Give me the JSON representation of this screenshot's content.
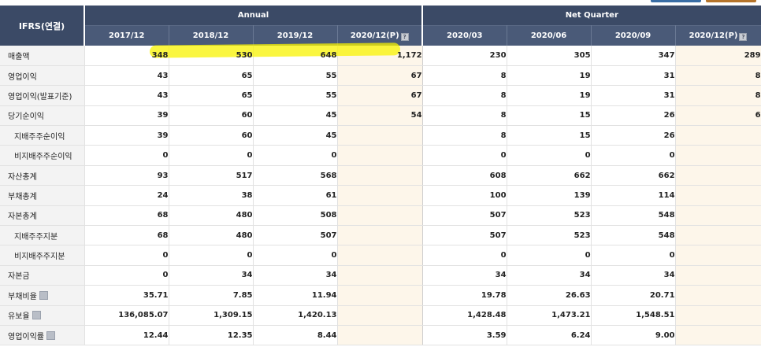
{
  "header": {
    "corner_label": "IFRS(연결)",
    "annual_label": "Annual",
    "quarter_label": "Net Quarter",
    "annual_periods": [
      "2017/12",
      "2018/12",
      "2019/12",
      "2020/12(P)"
    ],
    "quarter_periods": [
      "2020/03",
      "2020/06",
      "2020/09",
      "2020/12(P)"
    ]
  },
  "colors": {
    "header_bg": "#3b4a66",
    "subheader_bg": "#4a5a78",
    "estimate_bg": "#fdf6ea",
    "highlight": "#f8f300"
  },
  "rows": [
    {
      "label": "매출액",
      "values": [
        "348",
        "530",
        "648",
        "1,172",
        "230",
        "305",
        "347",
        "289"
      ]
    },
    {
      "label": "영업이익",
      "values": [
        "43",
        "65",
        "55",
        "67",
        "8",
        "19",
        "31",
        "8"
      ]
    },
    {
      "label": "영업이익(발표기준)",
      "values": [
        "43",
        "65",
        "55",
        "67",
        "8",
        "19",
        "31",
        "8"
      ]
    },
    {
      "label": "당기순이익",
      "values": [
        "39",
        "60",
        "45",
        "54",
        "8",
        "15",
        "26",
        "6"
      ]
    },
    {
      "label": "지배주주순이익",
      "values": [
        "39",
        "60",
        "45",
        "",
        "8",
        "15",
        "26",
        ""
      ]
    },
    {
      "label": "비지배주주순이익",
      "values": [
        "0",
        "0",
        "0",
        "",
        "0",
        "0",
        "0",
        ""
      ]
    },
    {
      "label": "자산총계",
      "values": [
        "93",
        "517",
        "568",
        "",
        "608",
        "662",
        "662",
        ""
      ]
    },
    {
      "label": "부채총계",
      "values": [
        "24",
        "38",
        "61",
        "",
        "100",
        "139",
        "114",
        ""
      ]
    },
    {
      "label": "자본총계",
      "values": [
        "68",
        "480",
        "508",
        "",
        "507",
        "523",
        "548",
        ""
      ]
    },
    {
      "label": "지배주주지분",
      "values": [
        "68",
        "480",
        "507",
        "",
        "507",
        "523",
        "548",
        ""
      ]
    },
    {
      "label": "비지배주주지분",
      "values": [
        "0",
        "0",
        "0",
        "",
        "0",
        "0",
        "0",
        ""
      ]
    },
    {
      "label": "자본금",
      "values": [
        "0",
        "34",
        "34",
        "",
        "34",
        "34",
        "34",
        ""
      ]
    },
    {
      "label": "부채비율",
      "values": [
        "35.71",
        "7.85",
        "11.94",
        "",
        "19.78",
        "26.63",
        "20.71",
        ""
      ]
    },
    {
      "label": "유보율",
      "values": [
        "136,085.07",
        "1,309.15",
        "1,420.13",
        "",
        "1,428.48",
        "1,473.21",
        "1,548.51",
        ""
      ]
    },
    {
      "label": "영업이익률",
      "values": [
        "12.44",
        "12.35",
        "8.44",
        "",
        "3.59",
        "6.24",
        "9.00",
        ""
      ]
    }
  ]
}
